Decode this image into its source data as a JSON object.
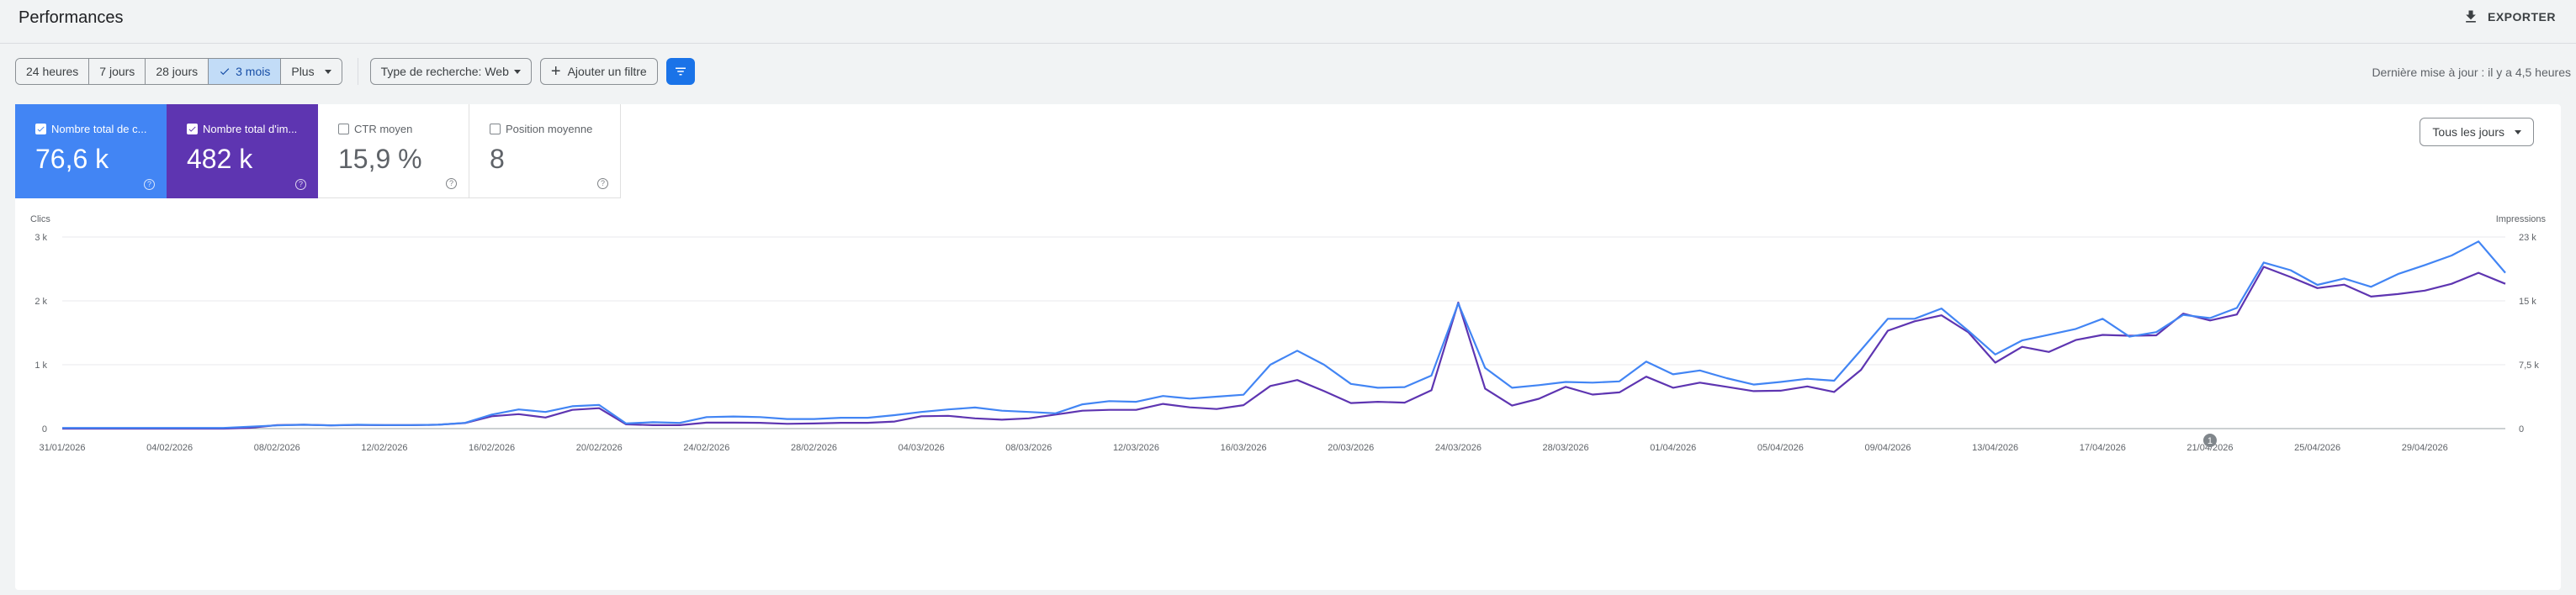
{
  "header": {
    "title": "Performances",
    "export_label": "EXPORTER"
  },
  "toolbar": {
    "ranges": [
      "24 heures",
      "7 jours",
      "28 jours",
      "3 mois"
    ],
    "more_label": "Plus",
    "search_type": "Type de recherche: Web",
    "add_filter": "Ajouter un filtre",
    "updated": "Dernière mise à jour : il y a 4,5 heures"
  },
  "metrics": [
    {
      "label": "Nombre total de c...",
      "value": "76,6 k",
      "checked": true
    },
    {
      "label": "Nombre total d'im...",
      "value": "482 k",
      "checked": true
    },
    {
      "label": "CTR moyen",
      "value": "15,9 %",
      "checked": false
    },
    {
      "label": "Position moyenne",
      "value": "8",
      "checked": false
    }
  ],
  "days_select": "Tous les jours",
  "colors": {
    "clicks": "#4285f4",
    "impressions": "#5e35b1",
    "accent": "#1a73e8"
  },
  "chart_data": {
    "type": "line",
    "ylabel_left": "Clics",
    "ylabel_right": "Impressions",
    "y_left_ticks": [
      "0",
      "1 k",
      "2 k",
      "3 k"
    ],
    "y_right_ticks": [
      "0",
      "7,5 k",
      "15 k",
      "23 k"
    ],
    "ylim_left": [
      0,
      3000
    ],
    "ylim_right": [
      0,
      22500
    ],
    "x_tick_labels": [
      "31/01/2026",
      "04/02/2026",
      "08/02/2026",
      "12/02/2026",
      "16/02/2026",
      "20/02/2026",
      "24/02/2026",
      "28/02/2026",
      "04/03/2026",
      "08/03/2026",
      "12/03/2026",
      "16/03/2026",
      "20/03/2026",
      "24/03/2026",
      "28/03/2026",
      "01/04/2026",
      "05/04/2026",
      "09/04/2026",
      "13/04/2026",
      "17/04/2026",
      "21/04/2026",
      "25/04/2026",
      "29/04/2026"
    ],
    "annotation_label": "1",
    "annotation_x_index": 80,
    "grid": true,
    "series": [
      {
        "axis": "left",
        "values": [
          10,
          10,
          10,
          10,
          10,
          10,
          10,
          30,
          50,
          60,
          50,
          60,
          55,
          55,
          60,
          90,
          220,
          300,
          260,
          350,
          370,
          80,
          100,
          90,
          180,
          190,
          180,
          150,
          150,
          170,
          170,
          210,
          260,
          300,
          330,
          280,
          260,
          240,
          380,
          430,
          420,
          510,
          470,
          500,
          530,
          1000,
          1220,
          1000,
          700,
          640,
          650,
          830,
          1960,
          950,
          640,
          680,
          730,
          720,
          740,
          1050,
          850,
          910,
          790,
          690,
          730,
          780,
          750,
          1230,
          1720,
          1720,
          1880,
          1530,
          1160,
          1380,
          1470,
          1560,
          1720,
          1440,
          1510,
          1780,
          1730,
          1890,
          2600,
          2480,
          2250,
          2350,
          2220,
          2420,
          2560,
          2710,
          2930,
          2440
        ]
      },
      {
        "axis": "right",
        "values": [
          0,
          0,
          0,
          0,
          0,
          0,
          0,
          100,
          400,
          450,
          380,
          420,
          400,
          400,
          450,
          650,
          1450,
          1700,
          1300,
          2200,
          2400,
          500,
          400,
          400,
          700,
          700,
          680,
          560,
          600,
          680,
          680,
          830,
          1450,
          1500,
          1200,
          1050,
          1200,
          1650,
          2100,
          2200,
          2200,
          2900,
          2500,
          2300,
          2750,
          5000,
          5700,
          4400,
          3000,
          3150,
          3050,
          4500,
          14800,
          4700,
          2700,
          3500,
          4900,
          4000,
          4250,
          6100,
          4800,
          5400,
          4900,
          4400,
          4450,
          4950,
          4300,
          6900,
          11500,
          12600,
          13300,
          11300,
          7750,
          9600,
          9000,
          10400,
          11000,
          10900,
          10950,
          13500,
          12700,
          13400,
          19000,
          17800,
          16500,
          16900,
          15500,
          15800,
          16200,
          17000,
          18300,
          17000
        ]
      }
    ]
  }
}
